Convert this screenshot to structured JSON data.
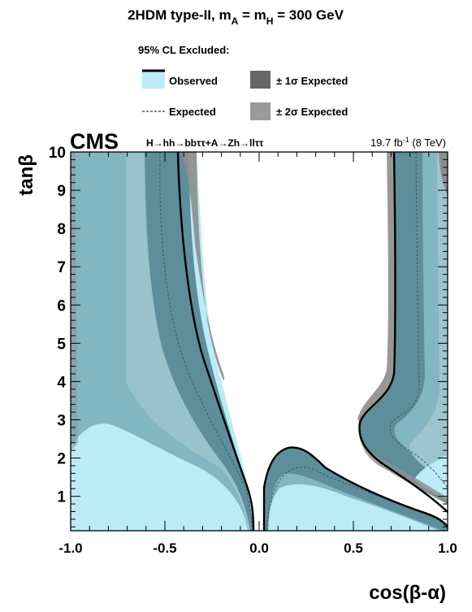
{
  "chart_data": {
    "type": "area",
    "title": "2HDM type-II, m",
    "title_sub1": "A",
    "title_mid": " = m",
    "title_sub2": "H",
    "title_end": " = 300 GeV",
    "legend_header": "95% CL Excluded:",
    "legend": {
      "observed": "Observed",
      "expected": "Expected",
      "one_sigma": "± 1σ Expected",
      "two_sigma": "± 2σ Expected"
    },
    "cms_label": "CMS",
    "channel_label": "H→hh→bbττ+A→Zh→llττ",
    "lumi_value": "19.7 fb",
    "lumi_sup": "-1",
    "lumi_energy": " (8 TeV)",
    "xlabel": "cos(β-α)",
    "ylabel": "tanβ",
    "xlim": [
      -1.0,
      1.0
    ],
    "ylim": [
      0.1,
      10.0
    ],
    "xticks": [
      "-1.0",
      "-0.5",
      "0.0",
      "0.5",
      "1.0"
    ],
    "xtick_values": [
      -1.0,
      -0.5,
      0.0,
      0.5,
      1.0
    ],
    "yticks": [
      "1",
      "2",
      "3",
      "4",
      "5",
      "6",
      "7",
      "8",
      "9",
      "10"
    ],
    "ytick_values": [
      1,
      2,
      3,
      4,
      5,
      6,
      7,
      8,
      9,
      10
    ],
    "colors": {
      "observed_fill": "#bbebf6",
      "expected_region": "#83b6c3",
      "one_sigma_band": "#5e8e9b",
      "two_sigma_band": "#9ec5ce",
      "sigma1_legend": "#666666",
      "sigma2_legend": "#9a9a9a",
      "observed_line": "#000000"
    },
    "series": [
      {
        "name": "Observed",
        "left_boundary": [
          [
            -0.025,
            0.1
          ],
          [
            -0.025,
            0.95
          ],
          [
            -0.05,
            1.5
          ],
          [
            -0.1,
            2.2
          ],
          [
            -0.15,
            3.0
          ],
          [
            -0.2,
            3.8
          ],
          [
            -0.25,
            4.6
          ],
          [
            -0.3,
            6.0
          ],
          [
            -0.35,
            7.7
          ],
          [
            -0.38,
            10.0
          ]
        ],
        "central_boundary": [
          [
            0.03,
            0.1
          ],
          [
            0.03,
            1.3
          ],
          [
            0.07,
            2.0
          ],
          [
            0.15,
            2.35
          ],
          [
            0.22,
            2.25
          ],
          [
            0.35,
            1.8
          ],
          [
            0.55,
            1.3
          ],
          [
            0.75,
            0.9
          ],
          [
            0.9,
            0.55
          ],
          [
            1.0,
            0.4
          ]
        ],
        "right_boundary": [
          [
            1.0,
            0.55
          ],
          [
            0.8,
            1.2
          ],
          [
            0.65,
            1.8
          ],
          [
            0.53,
            2.6
          ],
          [
            0.53,
            3.2
          ],
          [
            0.6,
            3.8
          ],
          [
            0.7,
            4.4
          ],
          [
            0.72,
            6.0
          ],
          [
            0.72,
            8.0
          ],
          [
            0.73,
            10.0
          ]
        ]
      },
      {
        "name": "Expected",
        "left_boundary": [
          [
            -0.04,
            0.1
          ],
          [
            -0.05,
            1.0
          ],
          [
            -0.1,
            1.6
          ],
          [
            -0.2,
            2.3
          ],
          [
            -0.3,
            3.0
          ],
          [
            -0.4,
            3.7
          ],
          [
            -0.46,
            4.5
          ],
          [
            -0.5,
            6.0
          ],
          [
            -0.52,
            8.0
          ],
          [
            -0.53,
            10.0
          ]
        ],
        "central_boundary": [
          [
            0.04,
            0.1
          ],
          [
            0.04,
            1.0
          ],
          [
            0.1,
            1.55
          ],
          [
            0.2,
            1.7
          ],
          [
            0.35,
            1.45
          ],
          [
            0.55,
            1.05
          ],
          [
            0.75,
            0.75
          ],
          [
            0.9,
            0.5
          ],
          [
            1.0,
            0.35
          ]
        ],
        "right_boundary": [
          [
            1.0,
            0.4
          ],
          [
            0.85,
            1.6
          ],
          [
            0.75,
            2.3
          ],
          [
            0.73,
            2.8
          ],
          [
            0.8,
            3.2
          ],
          [
            0.86,
            4.0
          ],
          [
            0.88,
            6.0
          ],
          [
            0.88,
            8.0
          ],
          [
            0.89,
            10.0
          ]
        ]
      }
    ]
  }
}
